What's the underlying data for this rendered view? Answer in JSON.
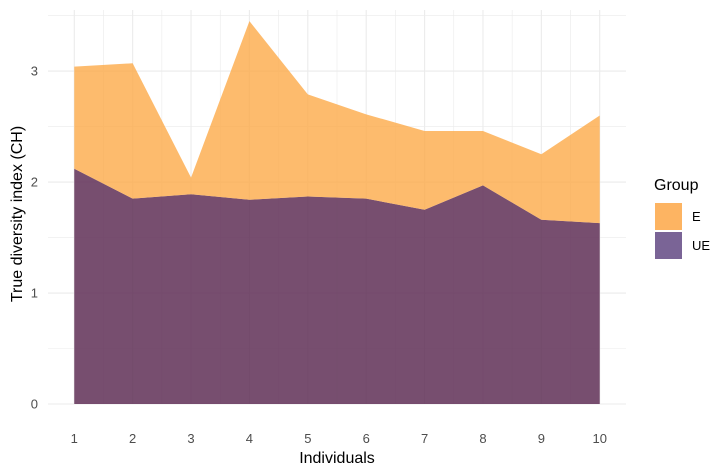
{
  "chart_data": {
    "type": "area",
    "stacked": true,
    "x": [
      1,
      2,
      3,
      4,
      5,
      6,
      7,
      8,
      9,
      10
    ],
    "series": [
      {
        "name": "UE",
        "values": [
          2.12,
          1.85,
          1.89,
          1.84,
          1.87,
          1.85,
          1.75,
          1.97,
          1.66,
          1.63
        ],
        "color": "#5f2f56"
      },
      {
        "name": "E",
        "values": [
          0.92,
          1.22,
          0.15,
          1.61,
          0.92,
          0.76,
          0.71,
          0.49,
          0.59,
          0.97
        ],
        "color": "#fdaa48"
      }
    ],
    "xlabel": "Individuals",
    "ylabel": "True diversity index (CH)",
    "xlim": [
      0.55,
      10.45
    ],
    "ylim": [
      0,
      3.55
    ],
    "xticks": [
      "1",
      "2",
      "3",
      "4",
      "5",
      "6",
      "7",
      "8",
      "9",
      "10"
    ],
    "yticks": [
      "0",
      "1",
      "2",
      "3"
    ],
    "grid": true,
    "legend": {
      "title": "Group",
      "placement": "right",
      "entries": [
        {
          "label": "E",
          "color": "#fdb462"
        },
        {
          "label": "UE",
          "color": "#7a6496"
        }
      ]
    }
  }
}
